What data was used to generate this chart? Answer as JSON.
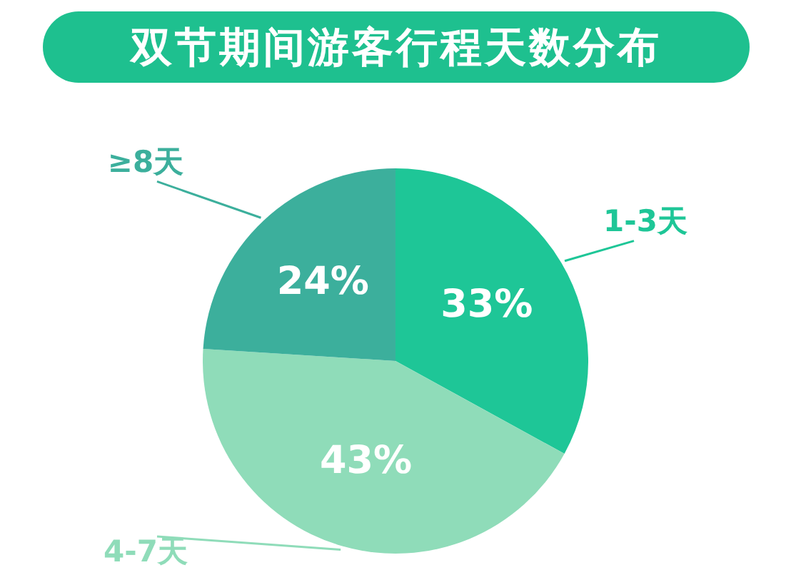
{
  "chart_data": {
    "type": "pie",
    "title": "双节期间游客行程天数分布",
    "categories": [
      "1-3天",
      "4-7天",
      "≥8天"
    ],
    "values": [
      33,
      43,
      24
    ],
    "colors": [
      "#1ec697",
      "#8fdcb9",
      "#3caf9c"
    ],
    "value_labels": [
      "33%",
      "43%",
      "24%"
    ],
    "legend": false
  }
}
